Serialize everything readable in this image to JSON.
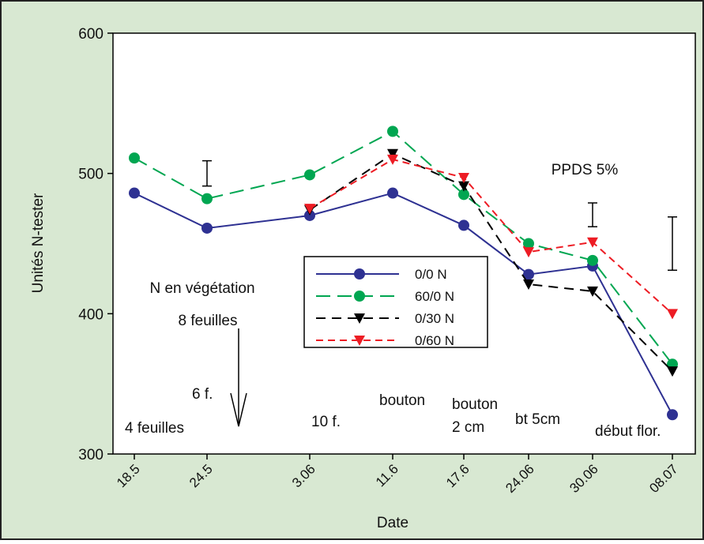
{
  "chart_data": {
    "type": "line",
    "x_label": "Date",
    "y_label": "Unités N-tester",
    "categories": [
      "18.5",
      "24.5",
      "3.06",
      "11.6",
      "17.6",
      "24.06",
      "30.06",
      "08.07"
    ],
    "series": [
      {
        "name": "0/0 N",
        "color": "#2e3192",
        "marker": "circle",
        "dash": "none",
        "values": [
          486,
          461,
          470,
          486,
          463,
          428,
          434,
          328
        ]
      },
      {
        "name": "60/0 N",
        "color": "#00a651",
        "marker": "circle",
        "dash": "18 9",
        "values": [
          511,
          482,
          499,
          530,
          485,
          450,
          438,
          364
        ]
      },
      {
        "name": "0/30 N",
        "color": "#000000",
        "marker": "triangle-down",
        "dash": "12 8",
        "values": [
          null,
          null,
          474,
          514,
          491,
          421,
          416,
          359
        ]
      },
      {
        "name": "0/60 N",
        "color": "#ed1c24",
        "marker": "triangle-down",
        "dash": "9 6",
        "values": [
          null,
          null,
          475,
          510,
          497,
          444,
          451,
          400
        ]
      }
    ],
    "error_bars": [
      {
        "category": "24.5",
        "low": 491,
        "high": 509
      },
      {
        "category": "30.06",
        "low": 462,
        "high": 479
      },
      {
        "category": "08.07",
        "low": 431,
        "high": 469
      }
    ],
    "error_label": "PPDS 5%",
    "annotations": [
      "N en végétation",
      "8 feuilles",
      "6 f.",
      "4 feuilles",
      "10 f.",
      "bouton",
      "bouton",
      "2 cm",
      "bt 5cm",
      "début flor."
    ],
    "ylim": [
      300,
      600
    ],
    "yticks": [
      300,
      400,
      500,
      600
    ]
  }
}
